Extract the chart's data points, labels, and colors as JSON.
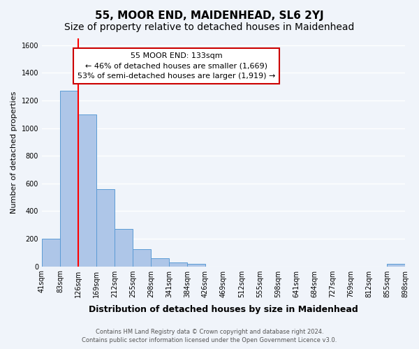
{
  "title": "55, MOOR END, MAIDENHEAD, SL6 2YJ",
  "subtitle": "Size of property relative to detached houses in Maidenhead",
  "bar_values": [
    200,
    1270,
    1100,
    560,
    270,
    125,
    60,
    30,
    20,
    0,
    0,
    0,
    0,
    0,
    0,
    0,
    0,
    0,
    0,
    20
  ],
  "categories": [
    "41sqm",
    "83sqm",
    "126sqm",
    "169sqm",
    "212sqm",
    "255sqm",
    "298sqm",
    "341sqm",
    "384sqm",
    "426sqm",
    "469sqm",
    "512sqm",
    "555sqm",
    "598sqm",
    "641sqm",
    "684sqm",
    "727sqm",
    "769sqm",
    "812sqm",
    "855sqm",
    "898sqm"
  ],
  "bar_color": "#aec6e8",
  "bar_edge_color": "#5b9bd5",
  "red_line_x": 2.0,
  "ylim": [
    0,
    1650
  ],
  "yticks": [
    0,
    200,
    400,
    600,
    800,
    1000,
    1200,
    1400,
    1600
  ],
  "ylabel": "Number of detached properties",
  "xlabel": "Distribution of detached houses by size in Maidenhead",
  "annotation_title": "55 MOOR END: 133sqm",
  "annotation_line1": "← 46% of detached houses are smaller (1,669)",
  "annotation_line2": "53% of semi-detached houses are larger (1,919) →",
  "annotation_box_color": "#ffffff",
  "annotation_box_edge": "#cc0000",
  "footer_line1": "Contains HM Land Registry data © Crown copyright and database right 2024.",
  "footer_line2": "Contains public sector information licensed under the Open Government Licence v3.0.",
  "background_color": "#f0f4fa",
  "grid_color": "#ffffff",
  "title_fontsize": 11,
  "subtitle_fontsize": 10
}
